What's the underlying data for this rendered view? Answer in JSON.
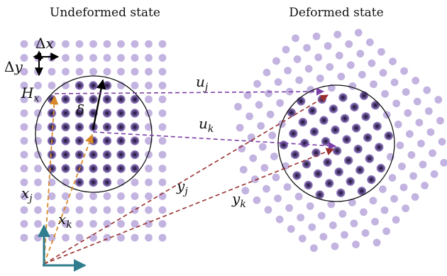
{
  "titles": {
    "left": "Undeformed state",
    "right": "Deformed state"
  },
  "labels": {
    "dx": {
      "delta": "Δ",
      "var": "x"
    },
    "dy": {
      "delta": "Δ",
      "var": "y"
    },
    "hx": {
      "main": "H",
      "sub": "x"
    },
    "delta": "δ",
    "uj": {
      "main": "u",
      "sub": "j"
    },
    "uk": {
      "main": "u",
      "sub": "k"
    },
    "yj": {
      "main": "y",
      "sub": "j"
    },
    "yk": {
      "main": "y",
      "sub": "k"
    },
    "xj": {
      "main": "x",
      "sub": "j"
    },
    "xk": {
      "main": "x",
      "sub": "k"
    }
  },
  "colors": {
    "dot_light": "#b9a6da",
    "dot_dark": "#3b2d5a",
    "dot_mid": "#7c66b0",
    "purple_arrow": "#7b3fa8",
    "orange_arrow": "#d98a2b",
    "red_arrow": "#9a2f2f",
    "axis": "#2f7d8e"
  }
}
